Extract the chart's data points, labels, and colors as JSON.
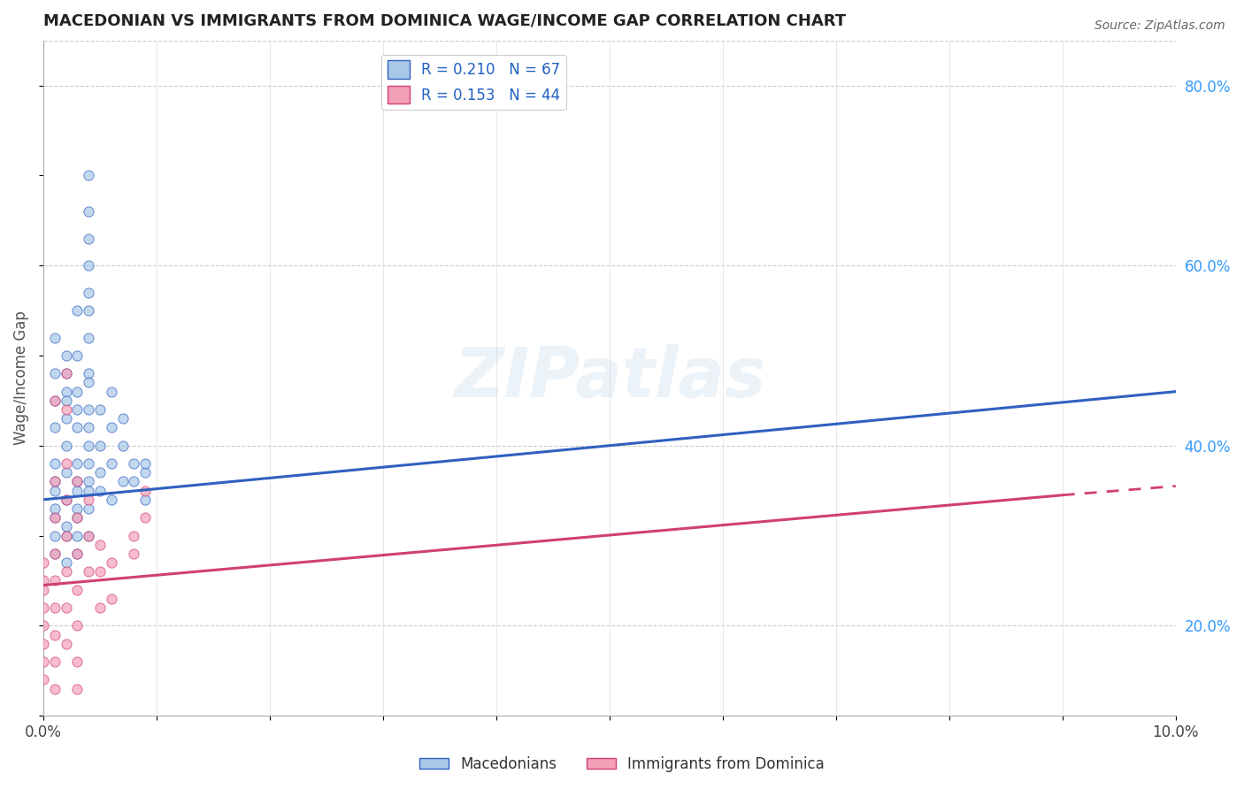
{
  "title": "MACEDONIAN VS IMMIGRANTS FROM DOMINICA WAGE/INCOME GAP CORRELATION CHART",
  "source": "Source: ZipAtlas.com",
  "ylabel": "Wage/Income Gap",
  "xlim": [
    0.0,
    0.1
  ],
  "ylim": [
    0.1,
    0.85
  ],
  "xticks": [
    0.0,
    0.01,
    0.02,
    0.03,
    0.04,
    0.05,
    0.06,
    0.07,
    0.08,
    0.09,
    0.1
  ],
  "yticks_right": [
    0.2,
    0.4,
    0.6,
    0.8
  ],
  "blue_R": 0.21,
  "blue_N": 67,
  "pink_R": 0.153,
  "pink_N": 44,
  "blue_color": "#a8c8e8",
  "pink_color": "#f4a0b8",
  "blue_line_color": "#3060c0",
  "pink_line_color": "#d04070",
  "blue_scatter": [
    [
      0.001,
      0.35
    ],
    [
      0.001,
      0.32
    ],
    [
      0.001,
      0.38
    ],
    [
      0.001,
      0.42
    ],
    [
      0.001,
      0.28
    ],
    [
      0.001,
      0.3
    ],
    [
      0.001,
      0.33
    ],
    [
      0.001,
      0.36
    ],
    [
      0.002,
      0.34
    ],
    [
      0.002,
      0.37
    ],
    [
      0.002,
      0.4
    ],
    [
      0.002,
      0.43
    ],
    [
      0.002,
      0.3
    ],
    [
      0.002,
      0.46
    ],
    [
      0.002,
      0.5
    ],
    [
      0.002,
      0.27
    ],
    [
      0.003,
      0.35
    ],
    [
      0.003,
      0.38
    ],
    [
      0.003,
      0.42
    ],
    [
      0.003,
      0.46
    ],
    [
      0.003,
      0.32
    ],
    [
      0.003,
      0.5
    ],
    [
      0.003,
      0.55
    ],
    [
      0.003,
      0.44
    ],
    [
      0.004,
      0.36
    ],
    [
      0.004,
      0.4
    ],
    [
      0.004,
      0.44
    ],
    [
      0.004,
      0.48
    ],
    [
      0.004,
      0.38
    ],
    [
      0.004,
      0.33
    ],
    [
      0.004,
      0.42
    ],
    [
      0.004,
      0.47
    ],
    [
      0.004,
      0.55
    ],
    [
      0.004,
      0.6
    ],
    [
      0.004,
      0.63
    ],
    [
      0.004,
      0.66
    ],
    [
      0.005,
      0.4
    ],
    [
      0.005,
      0.44
    ],
    [
      0.005,
      0.37
    ],
    [
      0.006,
      0.42
    ],
    [
      0.006,
      0.46
    ],
    [
      0.006,
      0.38
    ],
    [
      0.007,
      0.4
    ],
    [
      0.007,
      0.43
    ],
    [
      0.008,
      0.38
    ],
    [
      0.008,
      0.36
    ],
    [
      0.009,
      0.37
    ],
    [
      0.009,
      0.34
    ],
    [
      0.003,
      0.33
    ],
    [
      0.002,
      0.45
    ],
    [
      0.002,
      0.48
    ],
    [
      0.001,
      0.45
    ],
    [
      0.001,
      0.48
    ],
    [
      0.001,
      0.52
    ],
    [
      0.003,
      0.28
    ],
    [
      0.003,
      0.3
    ],
    [
      0.002,
      0.31
    ],
    [
      0.004,
      0.3
    ],
    [
      0.003,
      0.36
    ],
    [
      0.004,
      0.35
    ],
    [
      0.005,
      0.35
    ],
    [
      0.006,
      0.34
    ],
    [
      0.007,
      0.36
    ],
    [
      0.004,
      0.7
    ],
    [
      0.004,
      0.52
    ],
    [
      0.004,
      0.57
    ],
    [
      0.009,
      0.38
    ]
  ],
  "pink_scatter": [
    [
      0.0,
      0.27
    ],
    [
      0.0,
      0.24
    ],
    [
      0.0,
      0.22
    ],
    [
      0.0,
      0.2
    ],
    [
      0.0,
      0.18
    ],
    [
      0.0,
      0.16
    ],
    [
      0.0,
      0.14
    ],
    [
      0.0,
      0.25
    ],
    [
      0.001,
      0.28
    ],
    [
      0.001,
      0.25
    ],
    [
      0.001,
      0.22
    ],
    [
      0.001,
      0.19
    ],
    [
      0.001,
      0.16
    ],
    [
      0.001,
      0.13
    ],
    [
      0.001,
      0.32
    ],
    [
      0.001,
      0.36
    ],
    [
      0.002,
      0.3
    ],
    [
      0.002,
      0.26
    ],
    [
      0.002,
      0.22
    ],
    [
      0.002,
      0.18
    ],
    [
      0.002,
      0.34
    ],
    [
      0.002,
      0.38
    ],
    [
      0.002,
      0.44
    ],
    [
      0.003,
      0.28
    ],
    [
      0.003,
      0.32
    ],
    [
      0.003,
      0.24
    ],
    [
      0.003,
      0.2
    ],
    [
      0.003,
      0.16
    ],
    [
      0.003,
      0.13
    ],
    [
      0.004,
      0.3
    ],
    [
      0.004,
      0.34
    ],
    [
      0.004,
      0.26
    ],
    [
      0.005,
      0.26
    ],
    [
      0.005,
      0.22
    ],
    [
      0.005,
      0.29
    ],
    [
      0.006,
      0.27
    ],
    [
      0.006,
      0.23
    ],
    [
      0.008,
      0.3
    ],
    [
      0.008,
      0.28
    ],
    [
      0.009,
      0.35
    ],
    [
      0.009,
      0.32
    ],
    [
      0.002,
      0.48
    ],
    [
      0.001,
      0.45
    ],
    [
      0.003,
      0.36
    ]
  ],
  "watermark": "ZIPatlas",
  "background_color": "#ffffff",
  "grid_color": "#cccccc",
  "blue_trend": [
    0.0,
    0.1,
    0.34,
    0.46
  ],
  "pink_trend_solid": [
    0.0,
    0.09,
    0.245,
    0.345
  ],
  "pink_trend_dash": [
    0.09,
    0.1,
    0.345,
    0.355
  ]
}
